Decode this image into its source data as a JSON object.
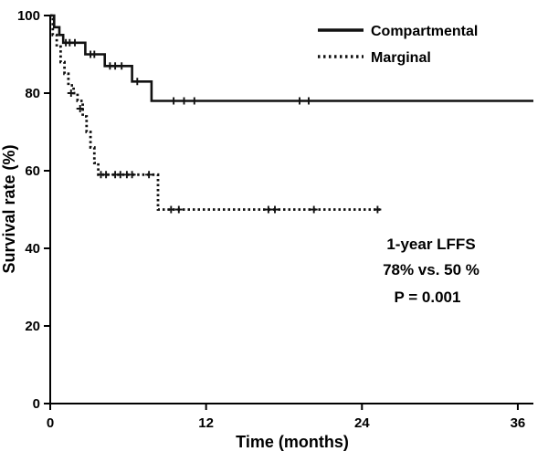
{
  "chart_data": {
    "type": "line",
    "subtype": "kaplan-meier-step",
    "title": "",
    "xlabel": "Time (months)",
    "ylabel": "Survival rate (%)",
    "xlim": [
      0,
      37.2
    ],
    "ylim": [
      0,
      100
    ],
    "x_ticks": [
      0,
      12,
      24,
      36
    ],
    "y_ticks": [
      0,
      20,
      40,
      60,
      80,
      100
    ],
    "grid": false,
    "legend_position": "top-right",
    "series": [
      {
        "name": "Compartmental",
        "line_style": "solid",
        "color": "#111111",
        "steps": [
          [
            0,
            100
          ],
          [
            0.3,
            97
          ],
          [
            0.7,
            95
          ],
          [
            1.0,
            93
          ],
          [
            2.7,
            90
          ],
          [
            4.2,
            87
          ],
          [
            6.3,
            83
          ],
          [
            7.8,
            78
          ],
          [
            37.2,
            78
          ]
        ],
        "censors": [
          [
            1.2,
            93
          ],
          [
            1.5,
            93
          ],
          [
            1.9,
            93
          ],
          [
            3.1,
            90
          ],
          [
            3.4,
            90
          ],
          [
            4.6,
            87
          ],
          [
            5.0,
            87
          ],
          [
            5.5,
            87
          ],
          [
            6.7,
            83
          ],
          [
            9.5,
            78
          ],
          [
            10.3,
            78
          ],
          [
            11.1,
            78
          ],
          [
            19.2,
            78
          ],
          [
            19.9,
            78
          ]
        ]
      },
      {
        "name": "Marginal",
        "line_style": "dotted",
        "color": "#111111",
        "steps": [
          [
            0,
            100
          ],
          [
            0.2,
            95
          ],
          [
            0.5,
            92
          ],
          [
            0.8,
            88
          ],
          [
            1.1,
            85
          ],
          [
            1.4,
            82
          ],
          [
            1.8,
            80
          ],
          [
            2.1,
            78
          ],
          [
            2.5,
            74
          ],
          [
            2.8,
            70
          ],
          [
            3.1,
            66
          ],
          [
            3.4,
            62
          ],
          [
            3.7,
            59
          ],
          [
            8.3,
            50
          ],
          [
            25.4,
            50
          ]
        ],
        "censors": [
          [
            1.6,
            80
          ],
          [
            2.3,
            76
          ],
          [
            3.9,
            59
          ],
          [
            4.3,
            59
          ],
          [
            5.0,
            59
          ],
          [
            5.4,
            59
          ],
          [
            5.9,
            59
          ],
          [
            6.3,
            59
          ],
          [
            7.6,
            59
          ],
          [
            9.3,
            50
          ],
          [
            9.9,
            50
          ],
          [
            16.8,
            50
          ],
          [
            17.3,
            50
          ],
          [
            20.3,
            50
          ],
          [
            25.2,
            50
          ]
        ]
      }
    ],
    "annotations": [
      "1-year LFFS",
      "78% vs. 50 %",
      "P = 0.001"
    ]
  }
}
